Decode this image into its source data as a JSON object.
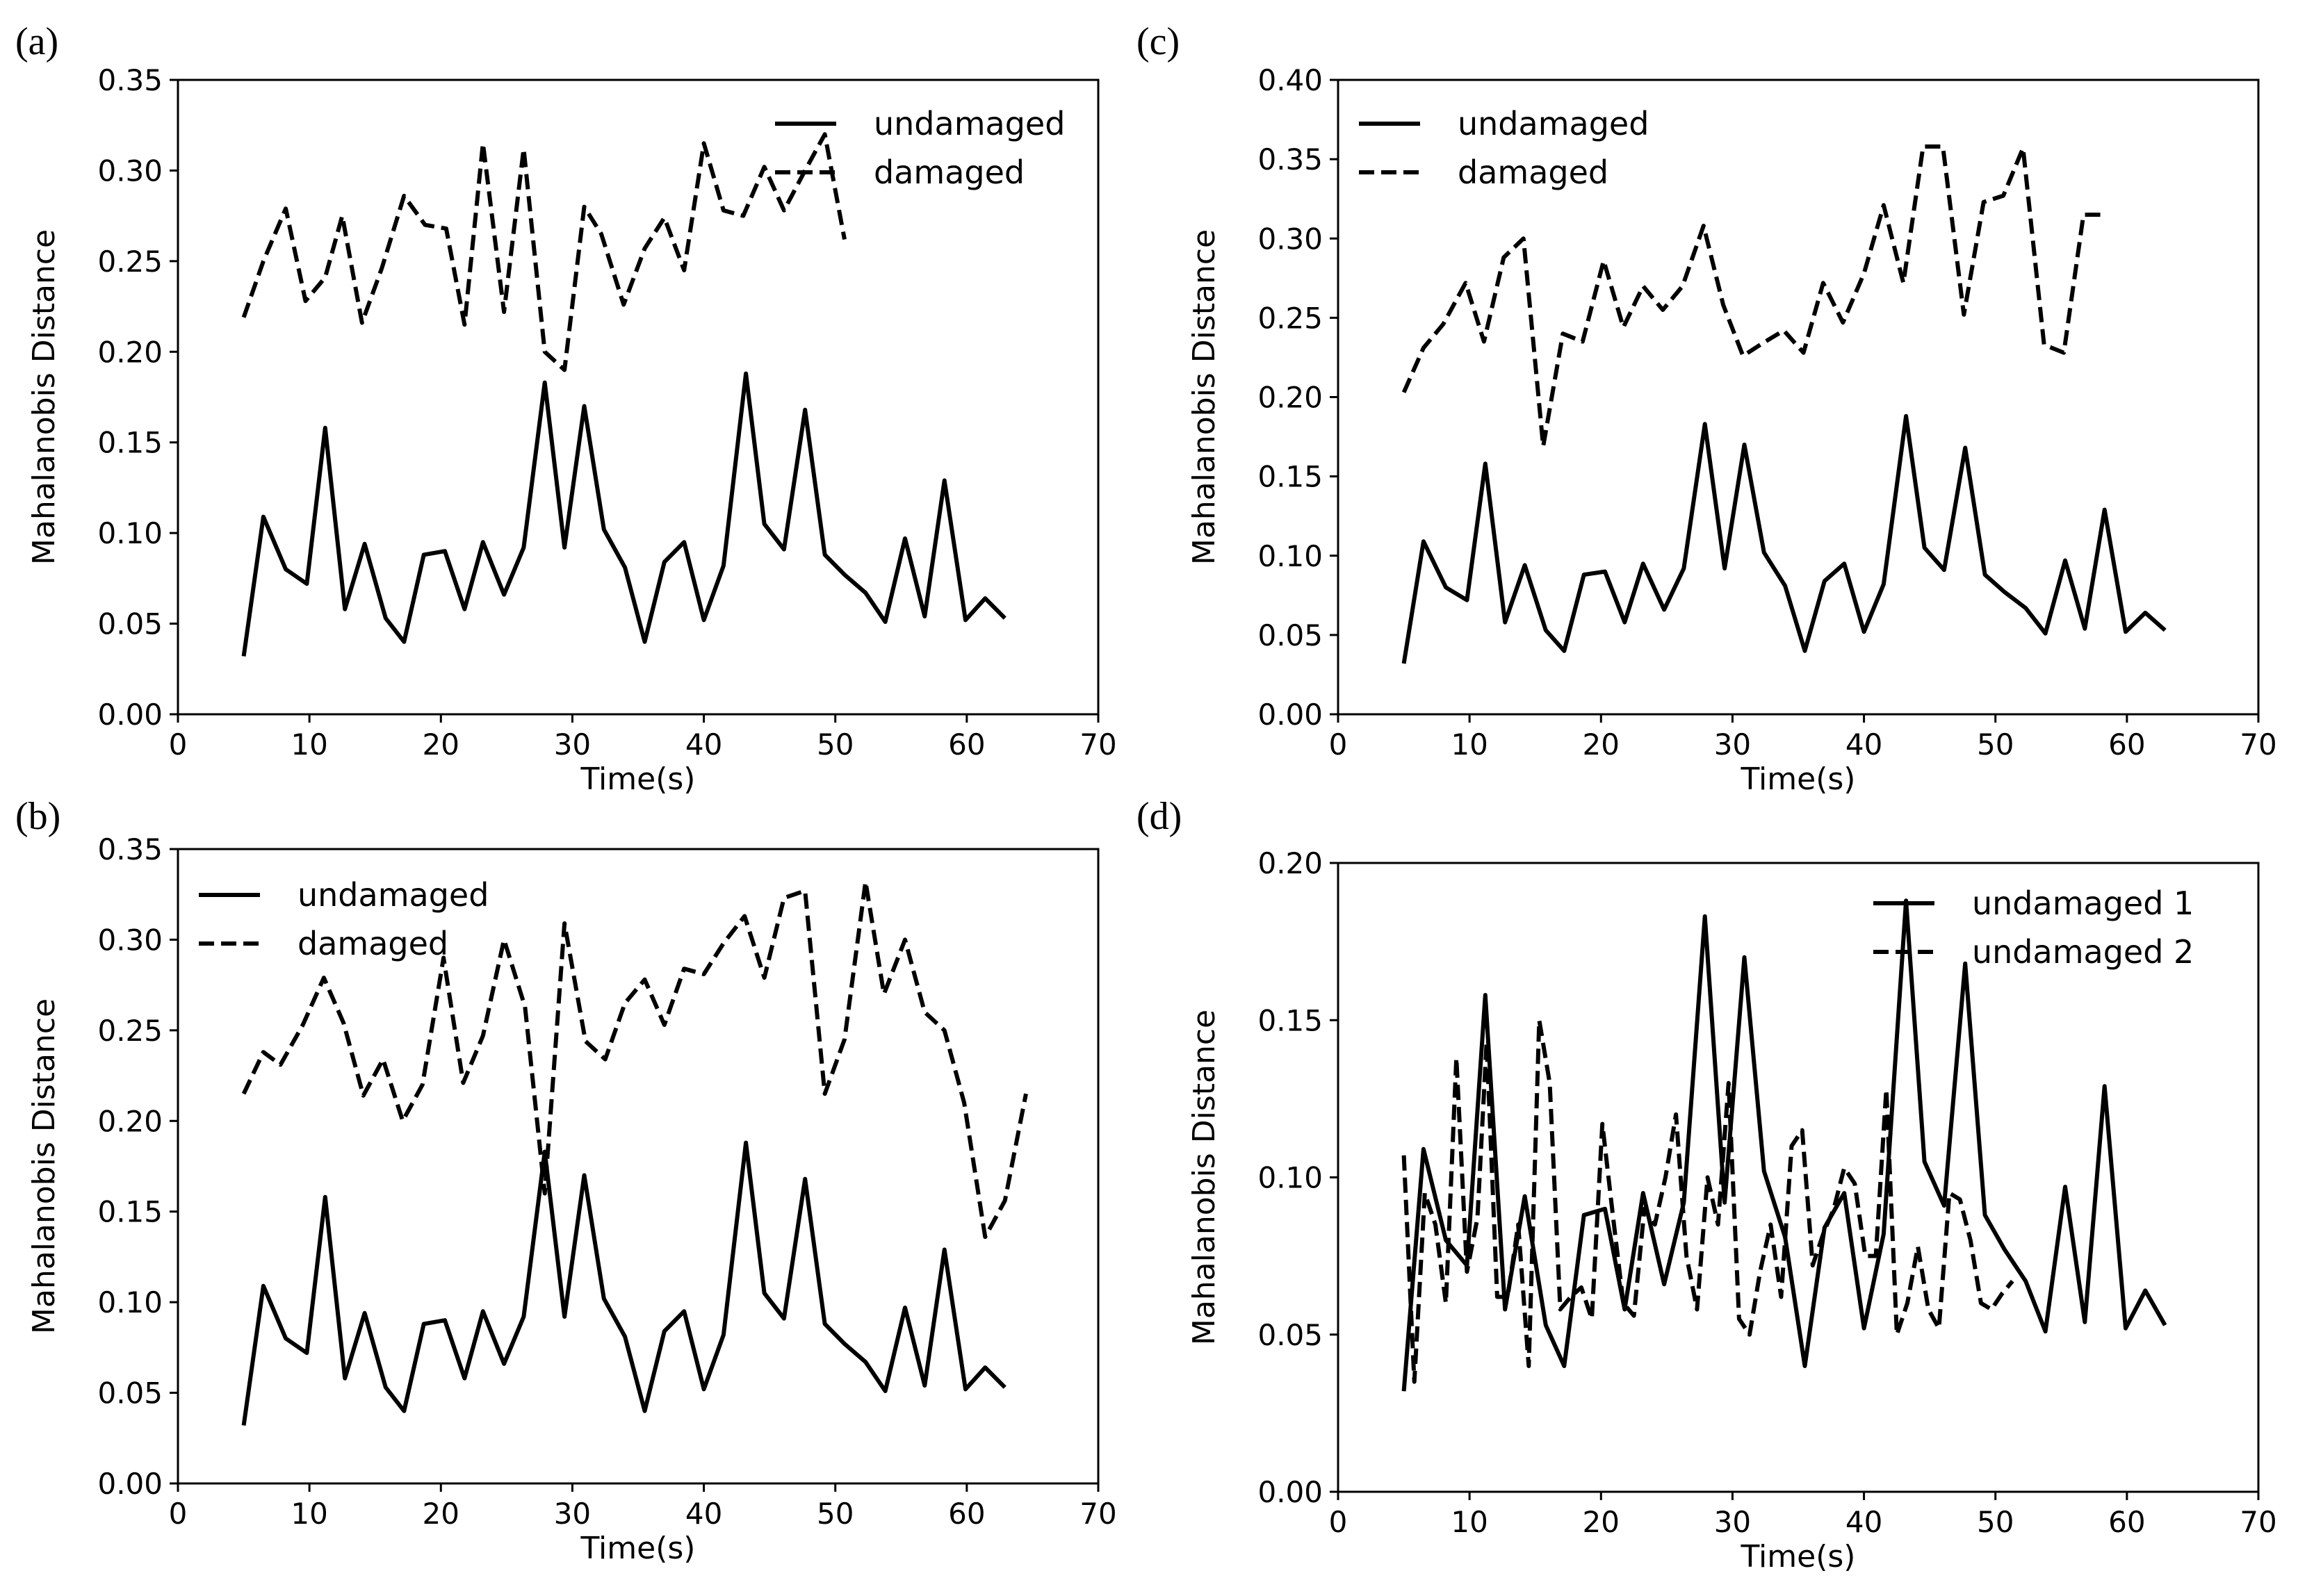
{
  "chart_data": [
    {
      "panel_label": "(a)",
      "type": "line",
      "xlabel": "Time(s)",
      "ylabel": "Mahalanobis Distance",
      "xlim": [
        0,
        70
      ],
      "ylim": [
        0,
        0.35
      ],
      "xticks": [
        "0",
        "10",
        "20",
        "30",
        "40",
        "50",
        "60",
        "70"
      ],
      "yticks": [
        "0.00",
        "0.05",
        "0.10",
        "0.15",
        "0.20",
        "0.25",
        "0.30",
        "0.35"
      ],
      "legend_position": "top-right",
      "series": [
        {
          "name": "undamaged",
          "style": "solid",
          "x": [
            5,
            6.5,
            8.2,
            9.8,
            11.2,
            12.7,
            14.2,
            15.8,
            17.2,
            18.7,
            20.3,
            21.8,
            23.2,
            24.8,
            26.3,
            27.9,
            29.4,
            30.9,
            32.4,
            34,
            35.5,
            37,
            38.5,
            40,
            41.5,
            43.2,
            44.6,
            46.1,
            47.7,
            49.2,
            50.7,
            52.3,
            53.8,
            55.3,
            56.8,
            58.3,
            59.9,
            61.4,
            62.9
          ],
          "y": [
            0.032,
            0.109,
            0.08,
            0.072,
            0.158,
            0.058,
            0.094,
            0.053,
            0.04,
            0.088,
            0.09,
            0.058,
            0.095,
            0.066,
            0.092,
            0.183,
            0.092,
            0.17,
            0.102,
            0.081,
            0.04,
            0.084,
            0.095,
            0.052,
            0.082,
            0.188,
            0.105,
            0.091,
            0.168,
            0.088,
            0.077,
            0.067,
            0.051,
            0.097,
            0.054,
            0.129,
            0.052,
            0.064,
            0.053
          ]
        },
        {
          "name": "damaged",
          "style": "dashed",
          "x": [
            5,
            6.5,
            8.2,
            9.7,
            11.2,
            12.5,
            14,
            15.5,
            17.2,
            18.8,
            20.4,
            21.8,
            23.2,
            24.8,
            26.3,
            27.9,
            29.4,
            30.9,
            32.2,
            33.9,
            35.5,
            37,
            38.5,
            40,
            41.5,
            43,
            44.6,
            46.1,
            47.7,
            49.2,
            50.7
          ],
          "y": [
            0.219,
            0.25,
            0.279,
            0.228,
            0.241,
            0.275,
            0.216,
            0.246,
            0.286,
            0.27,
            0.268,
            0.215,
            0.315,
            0.222,
            0.312,
            0.2,
            0.19,
            0.28,
            0.265,
            0.226,
            0.257,
            0.274,
            0.245,
            0.315,
            0.278,
            0.275,
            0.302,
            0.278,
            0.3,
            0.32,
            0.262
          ]
        }
      ]
    },
    {
      "panel_label": "(b)",
      "type": "line",
      "xlabel": "Time(s)",
      "ylabel": "Mahalanobis Distance",
      "xlim": [
        0,
        70
      ],
      "ylim": [
        0,
        0.35
      ],
      "xticks": [
        "0",
        "10",
        "20",
        "30",
        "40",
        "50",
        "60",
        "70"
      ],
      "yticks": [
        "0.00",
        "0.05",
        "0.10",
        "0.15",
        "0.20",
        "0.25",
        "0.30",
        "0.35"
      ],
      "legend_position": "top-left",
      "series": [
        {
          "name": "undamaged",
          "style": "solid",
          "x": [
            5,
            6.5,
            8.2,
            9.8,
            11.2,
            12.7,
            14.2,
            15.8,
            17.2,
            18.7,
            20.3,
            21.8,
            23.2,
            24.8,
            26.3,
            27.9,
            29.4,
            30.9,
            32.4,
            34,
            35.5,
            37,
            38.5,
            40,
            41.5,
            43.2,
            44.6,
            46.1,
            47.7,
            49.2,
            50.7,
            52.3,
            53.8,
            55.3,
            56.8,
            58.3,
            59.9,
            61.4,
            62.9
          ],
          "y": [
            0.032,
            0.109,
            0.08,
            0.072,
            0.158,
            0.058,
            0.094,
            0.053,
            0.04,
            0.088,
            0.09,
            0.058,
            0.095,
            0.066,
            0.092,
            0.183,
            0.092,
            0.17,
            0.102,
            0.081,
            0.04,
            0.084,
            0.095,
            0.052,
            0.082,
            0.188,
            0.105,
            0.091,
            0.168,
            0.088,
            0.077,
            0.067,
            0.051,
            0.097,
            0.054,
            0.129,
            0.052,
            0.064,
            0.053
          ]
        },
        {
          "name": "damaged",
          "style": "dashed",
          "x": [
            5,
            6.5,
            7.8,
            9.5,
            11.1,
            12.6,
            14.1,
            15.6,
            17.1,
            18.6,
            20.2,
            21.7,
            23.2,
            24.8,
            26.4,
            27.9,
            29.4,
            31,
            32.5,
            34,
            35.5,
            37,
            38.5,
            40,
            41.5,
            43.1,
            44.6,
            46.1,
            47.7,
            49.2,
            50.7,
            52.3,
            53.7,
            55.3,
            56.8,
            58.3,
            59.8,
            61.4,
            62.9,
            64.5
          ],
          "y": [
            0.215,
            0.238,
            0.231,
            0.253,
            0.279,
            0.254,
            0.214,
            0.234,
            0.2,
            0.22,
            0.29,
            0.221,
            0.247,
            0.3,
            0.263,
            0.16,
            0.309,
            0.244,
            0.234,
            0.265,
            0.278,
            0.253,
            0.284,
            0.281,
            0.298,
            0.313,
            0.279,
            0.323,
            0.327,
            0.215,
            0.245,
            0.332,
            0.27,
            0.3,
            0.26,
            0.25,
            0.21,
            0.136,
            0.156,
            0.215
          ]
        }
      ]
    },
    {
      "panel_label": "(c)",
      "type": "line",
      "xlabel": "Time(s)",
      "ylabel": "Mahalanobis Distance",
      "xlim": [
        0,
        70
      ],
      "ylim": [
        0,
        0.4
      ],
      "xticks": [
        "0",
        "10",
        "20",
        "30",
        "40",
        "50",
        "60",
        "70"
      ],
      "yticks": [
        "0.00",
        "0.05",
        "0.10",
        "0.15",
        "0.20",
        "0.25",
        "0.30",
        "0.35",
        "0.40"
      ],
      "legend_position": "top-left",
      "series": [
        {
          "name": "undamaged",
          "style": "solid",
          "x": [
            5,
            6.5,
            8.2,
            9.8,
            11.2,
            12.7,
            14.2,
            15.8,
            17.2,
            18.7,
            20.3,
            21.8,
            23.2,
            24.8,
            26.3,
            27.9,
            29.4,
            30.9,
            32.4,
            34,
            35.5,
            37,
            38.5,
            40,
            41.5,
            43.2,
            44.6,
            46.1,
            47.7,
            49.2,
            50.7,
            52.3,
            53.8,
            55.3,
            56.8,
            58.3,
            59.9,
            61.4,
            62.9
          ],
          "y": [
            0.032,
            0.109,
            0.08,
            0.072,
            0.158,
            0.058,
            0.094,
            0.053,
            0.04,
            0.088,
            0.09,
            0.058,
            0.095,
            0.066,
            0.092,
            0.183,
            0.092,
            0.17,
            0.102,
            0.081,
            0.04,
            0.084,
            0.095,
            0.052,
            0.082,
            0.188,
            0.105,
            0.091,
            0.168,
            0.088,
            0.077,
            0.067,
            0.051,
            0.097,
            0.054,
            0.129,
            0.052,
            0.064,
            0.053
          ]
        },
        {
          "name": "damaged",
          "style": "dashed",
          "x": [
            5,
            6.5,
            8,
            9.7,
            11.1,
            12.6,
            14.1,
            15.6,
            17.1,
            18.6,
            20.2,
            21.7,
            23.2,
            24.7,
            26.2,
            27.8,
            29.3,
            30.8,
            32.3,
            33.9,
            35.4,
            36.9,
            38.4,
            40,
            41.5,
            43,
            44.5,
            46,
            47.6,
            49.1,
            50.6,
            52.1,
            53.7,
            55.2,
            56.7,
            58.2
          ],
          "y": [
            0.203,
            0.231,
            0.246,
            0.272,
            0.235,
            0.288,
            0.3,
            0.169,
            0.24,
            0.235,
            0.286,
            0.244,
            0.27,
            0.255,
            0.27,
            0.308,
            0.258,
            0.226,
            0.234,
            0.242,
            0.228,
            0.272,
            0.247,
            0.278,
            0.321,
            0.272,
            0.358,
            0.358,
            0.252,
            0.323,
            0.327,
            0.357,
            0.233,
            0.228,
            0.315,
            0.315
          ]
        }
      ]
    },
    {
      "panel_label": "(d)",
      "type": "line",
      "xlabel": "Time(s)",
      "ylabel": "Mahalanobis Distance",
      "xlim": [
        0,
        70
      ],
      "ylim": [
        0,
        0.2
      ],
      "xticks": [
        "0",
        "10",
        "20",
        "30",
        "40",
        "50",
        "60",
        "70"
      ],
      "yticks": [
        "0.00",
        "0.05",
        "0.10",
        "0.15",
        "0.20"
      ],
      "legend_position": "top-right",
      "series": [
        {
          "name": "undamaged 1",
          "style": "solid",
          "x": [
            5,
            6.5,
            8.2,
            9.8,
            11.2,
            12.7,
            14.2,
            15.8,
            17.2,
            18.7,
            20.3,
            21.8,
            23.2,
            24.8,
            26.3,
            27.9,
            29.4,
            30.9,
            32.4,
            34,
            35.5,
            37,
            38.5,
            40,
            41.5,
            43.2,
            44.6,
            46.1,
            47.7,
            49.2,
            50.7,
            52.3,
            53.8,
            55.3,
            56.8,
            58.3,
            59.9,
            61.4,
            62.9
          ],
          "y": [
            0.032,
            0.109,
            0.08,
            0.072,
            0.158,
            0.058,
            0.094,
            0.053,
            0.04,
            0.088,
            0.09,
            0.058,
            0.095,
            0.066,
            0.092,
            0.183,
            0.092,
            0.17,
            0.102,
            0.081,
            0.04,
            0.084,
            0.095,
            0.052,
            0.082,
            0.188,
            0.105,
            0.091,
            0.168,
            0.088,
            0.077,
            0.067,
            0.051,
            0.097,
            0.054,
            0.129,
            0.052,
            0.064,
            0.053
          ]
        },
        {
          "name": "undamaged 2",
          "style": "dashed",
          "x": [
            5,
            5.8,
            6.6,
            7.4,
            8.2,
            9,
            9.8,
            10.6,
            11.3,
            12.1,
            12.9,
            13.7,
            14.5,
            15.3,
            16.1,
            16.9,
            17.7,
            18.5,
            19.3,
            20.1,
            20.9,
            21.7,
            22.5,
            23.3,
            24.1,
            24.9,
            25.7,
            26.5,
            27.3,
            28.1,
            28.9,
            29.7,
            30.5,
            31.3,
            32.1,
            32.9,
            33.7,
            34.5,
            35.3,
            36.1,
            36.9,
            37.7,
            38.5,
            39.3,
            40.1,
            40.9,
            41.7,
            42.5,
            43.3,
            44.1,
            44.9,
            45.7,
            46.5,
            47.3,
            48.1,
            48.9,
            49.7,
            50.5,
            51.3
          ],
          "y": [
            0.107,
            0.035,
            0.095,
            0.085,
            0.06,
            0.138,
            0.07,
            0.087,
            0.143,
            0.062,
            0.062,
            0.085,
            0.04,
            0.15,
            0.13,
            0.058,
            0.062,
            0.065,
            0.055,
            0.117,
            0.088,
            0.06,
            0.056,
            0.09,
            0.085,
            0.1,
            0.12,
            0.075,
            0.058,
            0.1,
            0.085,
            0.13,
            0.055,
            0.05,
            0.07,
            0.085,
            0.062,
            0.11,
            0.115,
            0.072,
            0.082,
            0.09,
            0.103,
            0.098,
            0.075,
            0.075,
            0.128,
            0.05,
            0.06,
            0.078,
            0.058,
            0.052,
            0.095,
            0.093,
            0.08,
            0.06,
            0.058,
            0.063,
            0.067
          ]
        }
      ]
    }
  ]
}
